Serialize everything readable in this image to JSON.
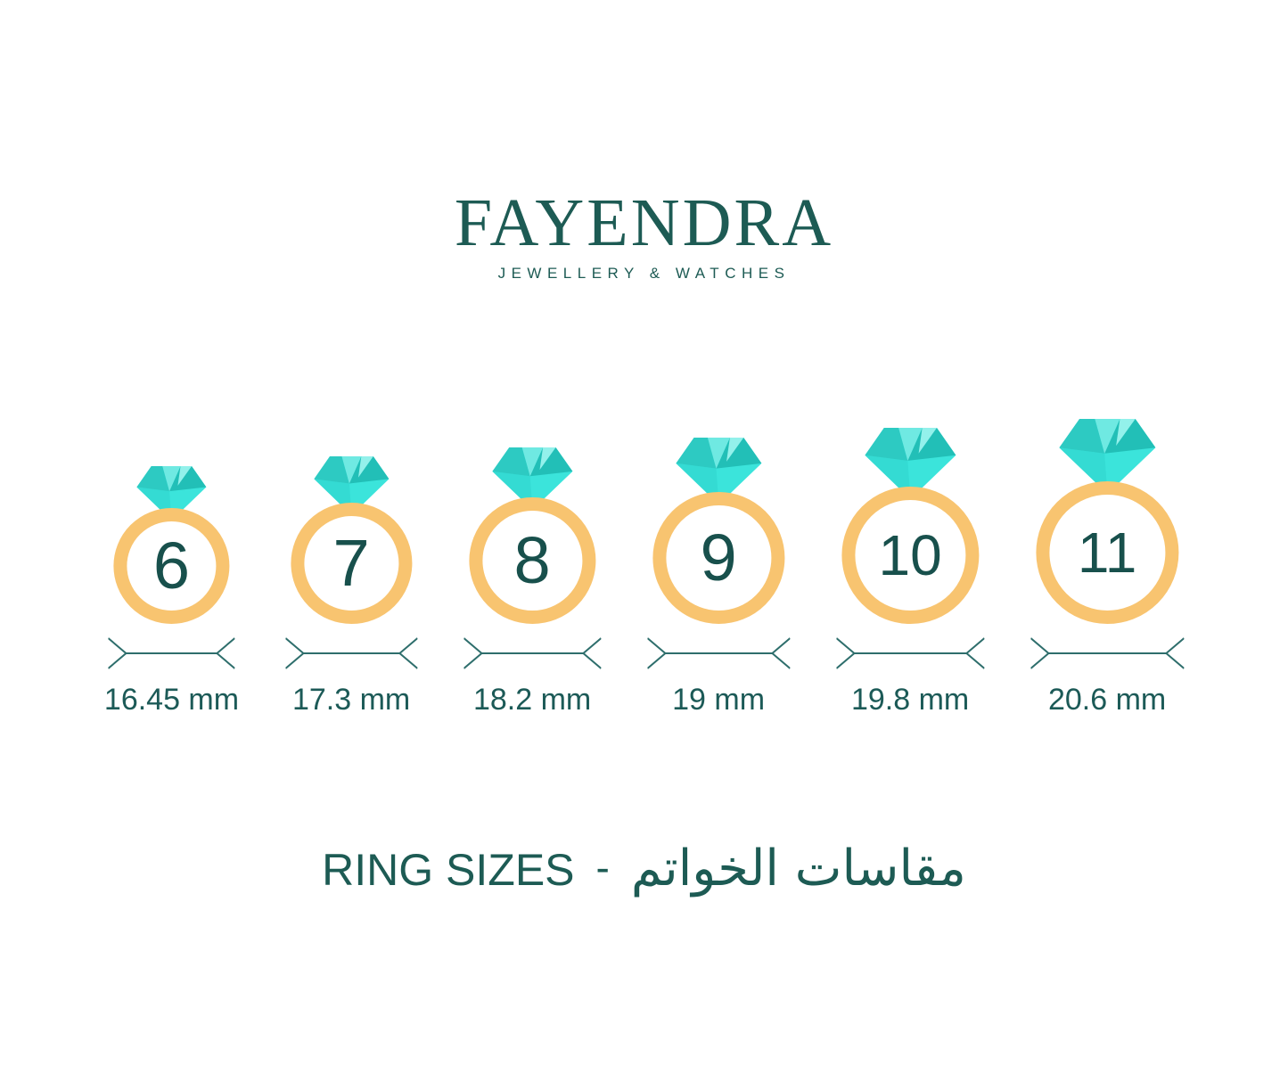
{
  "brand": {
    "name": "FAYENDRA",
    "tagline": "JEWELLERY & WATCHES"
  },
  "rings": [
    {
      "size": "6",
      "diameter_label": "16.45 mm"
    },
    {
      "size": "7",
      "diameter_label": "17.3 mm"
    },
    {
      "size": "8",
      "diameter_label": "18.2 mm"
    },
    {
      "size": "9",
      "diameter_label": "19 mm"
    },
    {
      "size": "10",
      "diameter_label": "19.8 mm"
    },
    {
      "size": "11",
      "diameter_label": "20.6 mm"
    }
  ],
  "footer": {
    "title_en": "RING SIZES",
    "separator": "-",
    "title_ar": "مقاسات الخواتم"
  },
  "colors": {
    "brand_teal": "#1d5b54",
    "number_teal": "#18504c",
    "label_teal": "#1c5a57",
    "line_teal": "#2e6e6c",
    "band_orange": "#f8c470",
    "diamond_base": "#3be4db",
    "diamond_shade": "#34dbd3",
    "diamond_mid": "#2dcac2",
    "diamond_dark": "#22bfb7",
    "diamond_lighter": "#93f1eb",
    "diamond_light": "#6fe9e2"
  }
}
